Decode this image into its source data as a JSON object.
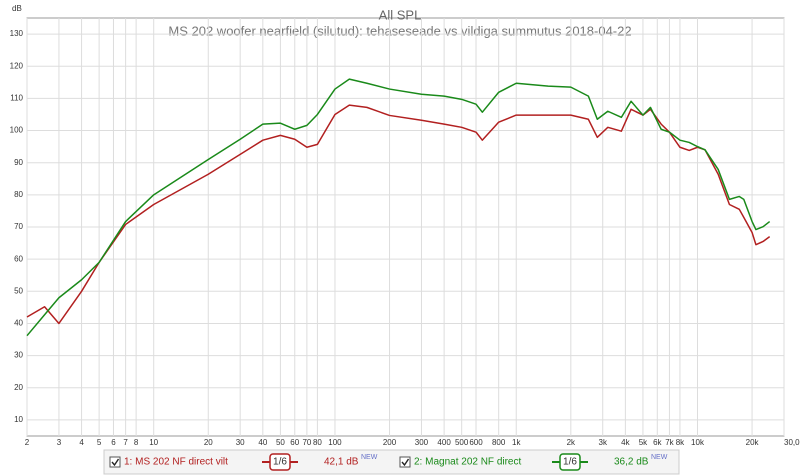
{
  "chart_data": {
    "type": "line",
    "title": "All SPL",
    "subtitle": "MS 202 woofer nearfield (silutud): tehaseseade vs vildiga summutus 2018-04-22",
    "y_label": "dB",
    "xscale": "log",
    "grid": true,
    "xlim": [
      2,
      30000
    ],
    "ylim": [
      5,
      135
    ],
    "yticks": [
      10,
      20,
      30,
      40,
      50,
      60,
      70,
      80,
      90,
      100,
      110,
      120,
      130
    ],
    "xticks": [
      2,
      3,
      4,
      5,
      6,
      7,
      8,
      10,
      20,
      30,
      40,
      50,
      60,
      70,
      80,
      100,
      200,
      300,
      400,
      500,
      600,
      800,
      {
        "value": 1000,
        "label": "1k"
      },
      {
        "value": 2000,
        "label": "2k"
      },
      {
        "value": 3000,
        "label": "3k"
      },
      {
        "value": 4000,
        "label": "4k"
      },
      {
        "value": 5000,
        "label": "5k"
      },
      {
        "value": 6000,
        "label": "6k"
      },
      {
        "value": 7000,
        "label": "7k"
      },
      {
        "value": 8000,
        "label": "8k"
      },
      {
        "value": 10000,
        "label": "10k"
      },
      {
        "value": 20000,
        "label": "20k"
      },
      {
        "value": 30000,
        "label": "30,0k Hz"
      }
    ],
    "x": [
      2,
      2.5,
      3,
      4,
      5,
      7,
      10,
      20,
      30,
      40,
      50,
      60,
      70,
      80,
      100,
      120,
      150,
      200,
      300,
      400,
      500,
      600,
      650,
      800,
      1000,
      1500,
      2000,
      2500,
      2800,
      3200,
      3800,
      4300,
      5000,
      5500,
      6300,
      7000,
      8000,
      9000,
      10000,
      11000,
      13000,
      15000,
      17000,
      18000,
      20000,
      21000,
      23000,
      25000
    ],
    "series": [
      {
        "name": "1: MS 202 NF direct vilt",
        "smoothing": "1/6",
        "level": "42,1 dB",
        "badge": "NEW",
        "color": "#b22020",
        "values": [
          42,
          45.2,
          40,
          50,
          59,
          70.8,
          77,
          86.4,
          92.6,
          97,
          98.5,
          97.3,
          94.8,
          95.7,
          105,
          107.9,
          107.2,
          104.7,
          103.2,
          102,
          101,
          99.5,
          97,
          102.6,
          104.8,
          104.8,
          104.8,
          103.5,
          97.9,
          101,
          99.8,
          106.6,
          104.8,
          106.6,
          102,
          99.5,
          94.8,
          93.8,
          94.8,
          94,
          86.4,
          77,
          75.5,
          73,
          68.3,
          64.5,
          65.5,
          67
        ]
      },
      {
        "name": "2: Magnat 202 NF direct",
        "smoothing": "1/6",
        "level": "36,2 dB",
        "badge": "NEW",
        "color": "#1a8a1a",
        "values": [
          36.2,
          42.7,
          48,
          53.6,
          59,
          71.7,
          80,
          91,
          97.3,
          102,
          102.3,
          100.4,
          101.6,
          105,
          112.9,
          116,
          114.7,
          112.9,
          111.3,
          110.7,
          109.7,
          108.2,
          105.7,
          111.9,
          114.7,
          113.8,
          113.5,
          110.7,
          103.5,
          106,
          104.1,
          109.1,
          104.8,
          107.2,
          100.4,
          99.5,
          97,
          96.3,
          95,
          94,
          87.9,
          78.6,
          79.5,
          78.6,
          71.7,
          69.2,
          70.1,
          71.7
        ]
      }
    ]
  }
}
